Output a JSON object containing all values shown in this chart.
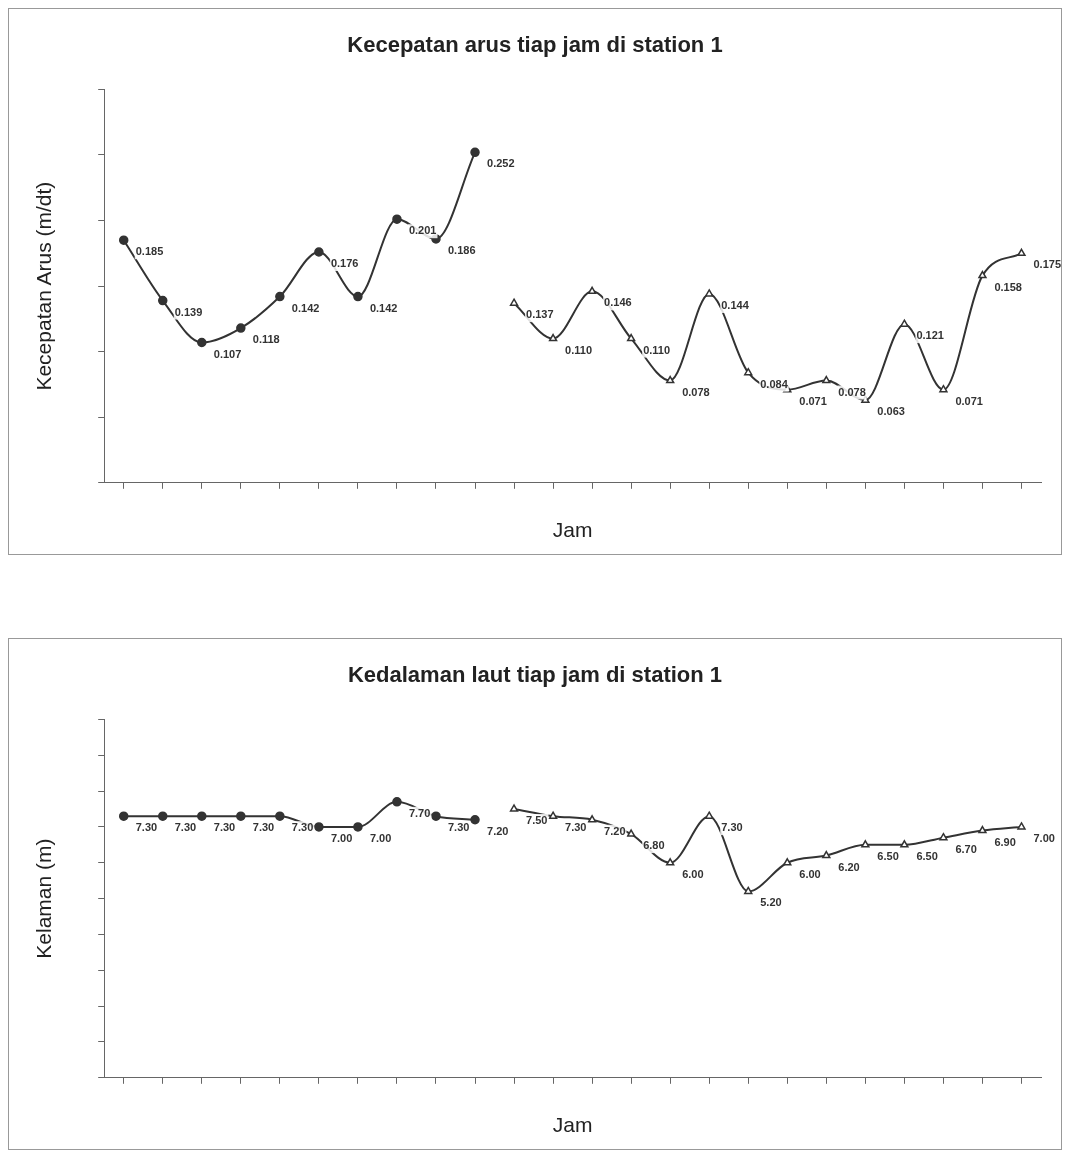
{
  "chart_data": [
    {
      "type": "line",
      "title": "Kecepatan arus tiap jam di station 1",
      "xlabel": "Jam",
      "ylabel": "Kecepatan Arus (m/dt)",
      "categories": [
        null,
        null,
        null,
        null,
        null,
        null,
        null,
        null,
        null,
        null,
        null,
        null,
        null,
        null,
        null,
        null,
        null,
        null,
        null,
        null,
        null,
        null,
        null,
        null
      ],
      "series": [
        {
          "color": "#333333",
          "marker": "circle",
          "values": [
            0.185,
            0.139,
            0.107,
            0.118,
            0.142,
            0.176,
            0.142,
            0.201,
            0.186,
            0.252,
            null,
            null,
            null,
            null,
            null,
            null,
            null,
            null,
            null,
            null,
            null,
            null,
            null,
            null
          ],
          "value_labels": [
            "0.185",
            "0.139",
            "0.107",
            "0.118",
            "0.142",
            "0.176",
            "0.142",
            "0.201",
            "0.186",
            "0.252",
            null,
            null,
            null,
            null,
            null,
            null,
            null,
            null,
            null,
            null,
            null,
            null,
            null,
            null
          ]
        },
        {
          "color": "#333333",
          "marker": "triangle",
          "values": [
            null,
            null,
            null,
            null,
            null,
            null,
            null,
            null,
            null,
            null,
            0.137,
            0.11,
            0.146,
            0.11,
            0.078,
            0.144,
            0.084,
            0.071,
            0.078,
            0.063,
            0.121,
            0.071,
            0.158,
            0.175
          ],
          "value_labels": [
            null,
            null,
            null,
            null,
            null,
            null,
            null,
            null,
            null,
            null,
            "0.137",
            "0.110",
            "0.146",
            "0.110",
            "0.078",
            "0.144",
            "0.084",
            "0.071",
            "0.078",
            "0.063",
            "0.121",
            "0.071",
            "0.158",
            "0.175"
          ]
        }
      ],
      "ylim": [
        0,
        0.3
      ],
      "yticks": [
        {
          "value": 0,
          "label": null
        },
        {
          "value": 0.05,
          "label": null
        },
        {
          "value": 0.1,
          "label": null
        },
        {
          "value": 0.15,
          "label": null
        },
        {
          "value": 0.2,
          "label": null
        },
        {
          "value": 0.25,
          "label": null
        },
        {
          "value": 0.3,
          "label": null
        }
      ],
      "tick_labels": false,
      "grid": false,
      "legend": false
    },
    {
      "type": "line",
      "title": "Kedalaman laut tiap jam di station 1",
      "xlabel": "Jam",
      "ylabel": "Kelaman (m)",
      "categories": [
        null,
        null,
        null,
        null,
        null,
        null,
        null,
        null,
        null,
        null,
        null,
        null,
        null,
        null,
        null,
        null,
        null,
        null,
        null,
        null,
        null,
        null,
        null,
        null
      ],
      "series": [
        {
          "color": "#333333",
          "marker": "circle",
          "values": [
            7.3,
            7.3,
            7.3,
            7.3,
            7.3,
            7.0,
            7.0,
            7.7,
            7.3,
            7.2,
            null,
            null,
            null,
            null,
            null,
            null,
            null,
            null,
            null,
            null,
            null,
            null,
            null,
            null
          ],
          "value_labels": [
            "7.30",
            "7.30",
            "7.30",
            "7.30",
            "7.30",
            "7.00",
            "7.00",
            "7.70",
            "7.30",
            "7.20",
            null,
            null,
            null,
            null,
            null,
            null,
            null,
            null,
            null,
            null,
            null,
            null,
            null,
            null
          ]
        },
        {
          "color": "#333333",
          "marker": "triangle",
          "values": [
            null,
            null,
            null,
            null,
            null,
            null,
            null,
            null,
            null,
            null,
            7.5,
            7.3,
            7.2,
            6.8,
            6.0,
            7.3,
            5.2,
            6.0,
            6.2,
            6.5,
            6.5,
            6.7,
            6.9,
            7.0
          ],
          "value_labels": [
            null,
            null,
            null,
            null,
            null,
            null,
            null,
            null,
            null,
            null,
            "7.50",
            "7.30",
            "7.20",
            "6.80",
            "6.00",
            "7.30",
            "5.20",
            "6.00",
            "6.20",
            "6.50",
            "6.50",
            "6.70",
            "6.90",
            "7.00"
          ]
        }
      ],
      "ylim": [
        0,
        10
      ],
      "yticks": [
        {
          "value": 0,
          "label": null
        },
        {
          "value": 1,
          "label": null
        },
        {
          "value": 2,
          "label": null
        },
        {
          "value": 3,
          "label": null
        },
        {
          "value": 4,
          "label": null
        },
        {
          "value": 5,
          "label": null
        },
        {
          "value": 6,
          "label": null
        },
        {
          "value": 7,
          "label": null
        },
        {
          "value": 8,
          "label": null
        },
        {
          "value": 9,
          "label": null
        },
        {
          "value": 10,
          "label": null
        }
      ],
      "tick_labels": false,
      "grid": false,
      "legend": false
    }
  ]
}
